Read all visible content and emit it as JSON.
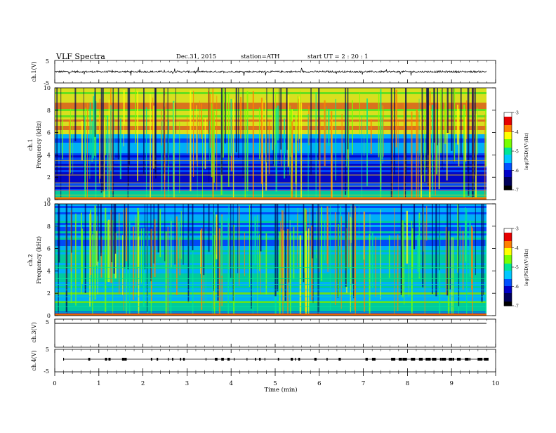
{
  "header": {
    "title": "VLF  Spectra",
    "date": "Dec.31, 2015",
    "station": "station=ATH",
    "start": "start  UT  =   2  : 20 : 1"
  },
  "chart_data": [
    {
      "type": "line",
      "panel": "ch1",
      "ylabel": "ch.1(V)",
      "ylim": [
        -5,
        5
      ],
      "yticks": [
        "5",
        "-5"
      ],
      "description_values": {
        "baseline": 0.0,
        "noise_amplitude": 0.4
      }
    },
    {
      "type": "heatmap",
      "panel": "ch1-spectrogram",
      "ylabel": "ch.1\nFrequency  (kHz)",
      "ylabel_lines": [
        "ch.1",
        "Frequency  (kHz)"
      ],
      "ylim": [
        0,
        10
      ],
      "yticks": [
        "0",
        "2",
        "4",
        "6",
        "8",
        "10"
      ],
      "colorbar": {
        "label": "log(PSD)(V²/Hz)",
        "range": [
          -7,
          -3
        ],
        "ticks": [
          "-3",
          "-4",
          "-5",
          "-6",
          "-7"
        ]
      }
    },
    {
      "type": "heatmap",
      "panel": "ch2-spectrogram",
      "ylabel": "ch.2\nFrequency  (kHz)",
      "ylabel_lines": [
        "ch.2",
        "Frequency  (kHz)"
      ],
      "ylim": [
        0,
        10
      ],
      "yticks": [
        "0",
        "2",
        "4",
        "6",
        "8",
        "10"
      ],
      "colorbar": {
        "label": "log(PSD)(V²/Hz)",
        "range": [
          -7,
          -3
        ],
        "ticks": [
          "-3",
          "-4",
          "-5",
          "-6",
          "-7"
        ]
      }
    },
    {
      "type": "line",
      "panel": "ch3",
      "ylabel": "ch.3(V)",
      "yticks": [
        "5"
      ],
      "description_values": {
        "baseline": 0.0
      }
    },
    {
      "type": "line",
      "panel": "ch4",
      "ylabel": "ch.4(V)",
      "ylim": [
        -5,
        5
      ],
      "yticks": [
        "5",
        "-5"
      ],
      "description_values": {
        "baseline": 0.0
      }
    }
  ],
  "xaxis": {
    "label": "Time  (min)",
    "range": [
      0,
      10
    ],
    "ticks": [
      "0",
      "1",
      "2",
      "3",
      "4",
      "5",
      "6",
      "7",
      "8",
      "9",
      "10"
    ]
  },
  "colors": {
    "scale": [
      "#000000",
      "#00005a",
      "#0000c8",
      "#0050ff",
      "#00c8ff",
      "#00e696",
      "#78ff00",
      "#ffff00",
      "#ff8000",
      "#e60000",
      "#ffffff"
    ]
  }
}
